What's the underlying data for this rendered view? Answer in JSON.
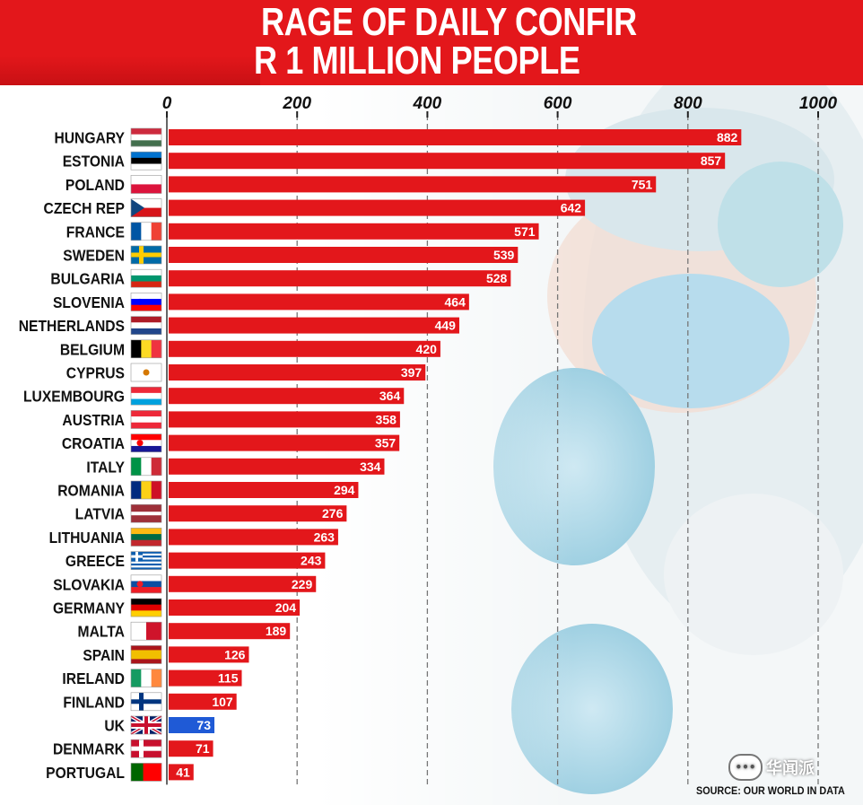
{
  "header": {
    "title_line1": "RAGE OF DAILY CONFIR",
    "title_line2": "R 1 MILLION PEOPLE"
  },
  "source": "SOURCE: OUR WORLD IN DATA",
  "watermark": "华闻派",
  "colors": {
    "bar": "#e3171b",
    "uk_bar": "#1f5ad6",
    "header": "#e3171b"
  },
  "chart_data": {
    "type": "bar",
    "orientation": "horizontal",
    "xlim": [
      0,
      1000
    ],
    "x_ticks": [
      "0",
      "200",
      "400",
      "600",
      "800",
      "1000"
    ],
    "grid": "vertical dashed",
    "categories": [
      "HUNGARY",
      "ESTONIA",
      "POLAND",
      "CZECH REP",
      "FRANCE",
      "SWEDEN",
      "BULGARIA",
      "SLOVENIA",
      "NETHERLANDS",
      "BELGIUM",
      "CYPRUS",
      "LUXEMBOURG",
      "AUSTRIA",
      "CROATIA",
      "ITALY",
      "ROMANIA",
      "LATVIA",
      "LITHUANIA",
      "GREECE",
      "SLOVAKIA",
      "GERMANY",
      "MALTA",
      "SPAIN",
      "IRELAND",
      "FINLAND",
      "UK",
      "DENMARK",
      "PORTUGAL"
    ],
    "values": [
      882,
      857,
      751,
      642,
      571,
      539,
      528,
      464,
      449,
      420,
      397,
      364,
      358,
      357,
      334,
      294,
      276,
      263,
      243,
      229,
      204,
      189,
      126,
      115,
      107,
      73,
      71,
      41
    ],
    "highlight": "UK",
    "flags": [
      "hungary-flag",
      "estonia-flag",
      "poland-flag",
      "czech-flag",
      "france-flag",
      "sweden-flag",
      "bulgaria-flag",
      "slovenia-flag",
      "netherlands-flag",
      "belgium-flag",
      "cyprus-flag",
      "luxembourg-flag",
      "austria-flag",
      "croatia-flag",
      "italy-flag",
      "romania-flag",
      "latvia-flag",
      "lithuania-flag",
      "greece-flag",
      "slovakia-flag",
      "germany-flag",
      "malta-flag",
      "spain-flag",
      "ireland-flag",
      "finland-flag",
      "uk-flag",
      "denmark-flag",
      "portugal-flag"
    ]
  }
}
